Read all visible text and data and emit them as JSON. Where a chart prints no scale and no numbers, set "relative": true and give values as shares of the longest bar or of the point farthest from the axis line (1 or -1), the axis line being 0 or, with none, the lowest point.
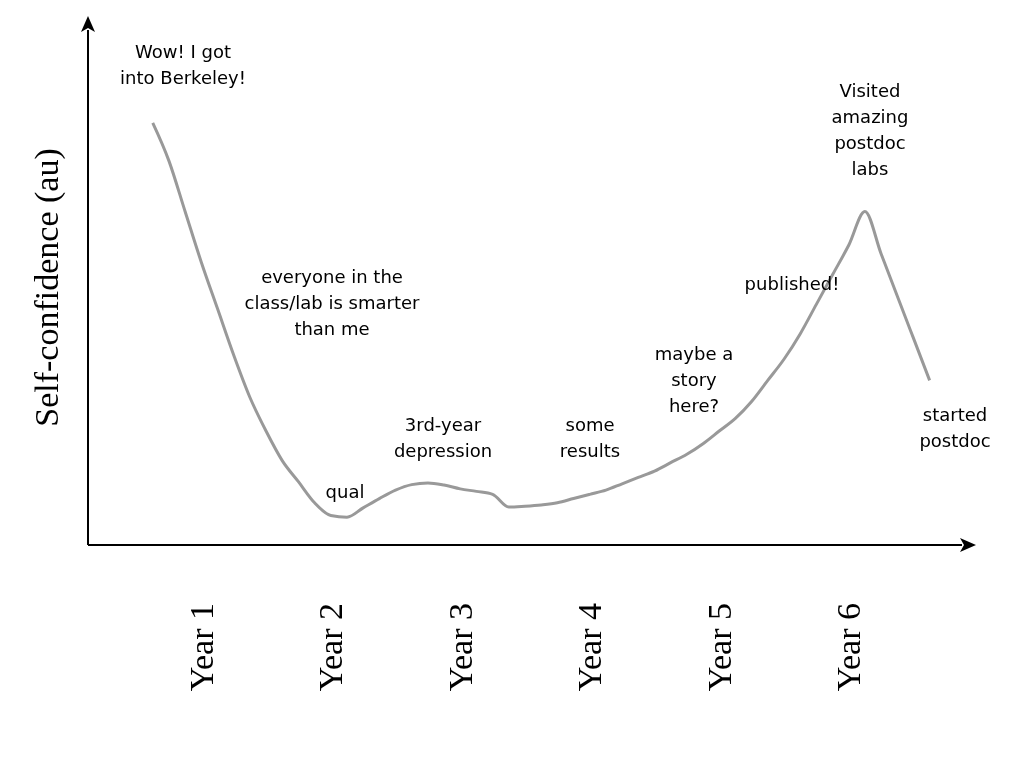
{
  "chart_data": {
    "type": "line",
    "relative": true,
    "ylabel": "Self-confidence (au)",
    "categories": [
      null,
      null,
      null,
      null,
      null,
      null,
      null,
      "Year 1",
      null,
      null,
      null,
      null,
      null,
      null,
      null,
      "Year 2",
      null,
      null,
      null,
      null,
      null,
      null,
      null,
      "Year 3",
      null,
      null,
      null,
      null,
      null,
      null,
      null,
      "Year 4",
      null,
      null,
      null,
      null,
      null,
      null,
      null,
      "Year 5",
      null,
      null,
      null,
      null,
      null,
      null,
      null,
      "Year 6",
      null,
      null,
      null,
      null,
      null,
      null,
      null
    ],
    "series": [
      {
        "color": "#999999",
        "values": [
          null,
          null,
          null,
          null,
          1.0,
          0.91,
          0.79,
          0.67,
          0.56,
          0.45,
          0.35,
          0.27,
          0.2,
          0.15,
          0.1,
          0.07,
          0.066,
          0.088,
          0.11,
          0.13,
          0.143,
          0.147,
          0.142,
          0.133,
          0.127,
          0.12,
          0.09,
          0.092,
          0.095,
          0.1,
          0.11,
          0.12,
          0.13,
          0.145,
          0.16,
          0.175,
          0.195,
          0.215,
          0.24,
          0.27,
          0.3,
          0.34,
          0.39,
          0.44,
          0.5,
          0.57,
          0.64,
          0.71,
          0.79,
          0.69,
          0.59,
          0.49,
          0.39,
          null,
          null
        ]
      }
    ],
    "annotations": [
      "Wow! I got\ninto Berkeley!",
      "everyone in the\nclass/lab is smarter\nthan me",
      "qual",
      "3rd-year\ndepression",
      "some\nresults",
      "maybe a\nstory\nhere?",
      "published!",
      "Visited\namazing\npostdoc\nlabs",
      "started\npostdoc"
    ],
    "grid": false,
    "legend": false,
    "marker": "none",
    "line_style": "solid"
  }
}
